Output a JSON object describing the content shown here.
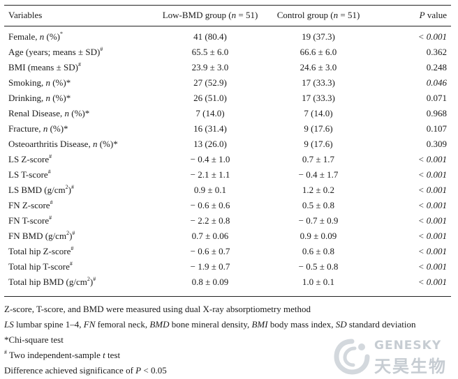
{
  "table": {
    "headers": {
      "variables": "Variables",
      "low_pre": "Low-BMD group (",
      "low_n": "n",
      "low_post": " = 51)",
      "ctrl_pre": "Control group (",
      "ctrl_n": "n",
      "ctrl_post": " = 51)",
      "p_italic": "P",
      "p_post": " value"
    },
    "rows": [
      {
        "label_main": "Female, ",
        "label_italic": "n",
        "label_after": " (%)",
        "label_sup": "*",
        "low": "41 (80.4)",
        "ctrl": "19 (37.3)",
        "p": "< 0.001",
        "p_italic": true
      },
      {
        "label_main": "Age (years; means ± SD)",
        "label_italic": "",
        "label_after": "",
        "label_sup": "#",
        "low": "65.5 ± 6.0",
        "ctrl": "66.6 ± 6.0",
        "p": "0.362",
        "p_italic": false
      },
      {
        "label_main": "BMI (means ± SD)",
        "label_italic": "",
        "label_after": "",
        "label_sup": "#",
        "low": "23.9 ± 3.0",
        "ctrl": "24.6 ± 3.0",
        "p": "0.248",
        "p_italic": false
      },
      {
        "label_main": "Smoking, ",
        "label_italic": "n",
        "label_after": " (%)*",
        "label_sup": "",
        "low": "27 (52.9)",
        "ctrl": "17 (33.3)",
        "p": "0.046",
        "p_italic": true
      },
      {
        "label_main": "Drinking, ",
        "label_italic": "n",
        "label_after": " (%)*",
        "label_sup": "",
        "low": "26 (51.0)",
        "ctrl": "17 (33.3)",
        "p": "0.071",
        "p_italic": false
      },
      {
        "label_main": "Renal Disease, ",
        "label_italic": "n",
        "label_after": " (%)*",
        "label_sup": "",
        "low": "7 (14.0)",
        "ctrl": "7 (14.0)",
        "p": "0.968",
        "p_italic": false
      },
      {
        "label_main": "Fracture, ",
        "label_italic": "n",
        "label_after": " (%)*",
        "label_sup": "",
        "low": "16 (31.4)",
        "ctrl": "9 (17.6)",
        "p": "0.107",
        "p_italic": false
      },
      {
        "label_main": "Osteoarthritis Disease, ",
        "label_italic": "n",
        "label_after": " (%)*",
        "label_sup": "",
        "low": "13 (26.0)",
        "ctrl": "9 (17.6)",
        "p": "0.309",
        "p_italic": false
      },
      {
        "label_main": "LS Z-score",
        "label_italic": "",
        "label_after": "",
        "label_sup": "#",
        "low": "− 0.4 ± 1.0",
        "ctrl": "0.7 ± 1.7",
        "p": "< 0.001",
        "p_italic": true
      },
      {
        "label_main": "LS T-score",
        "label_italic": "",
        "label_after": "",
        "label_sup": "#",
        "low": "− 2.1 ± 1.1",
        "ctrl": "− 0.4 ± 1.7",
        "p": "< 0.001",
        "p_italic": true
      },
      {
        "label_main": "LS BMD (g/cm",
        "label_italic": "",
        "label_after": ")",
        "label_sq": "2",
        "label_sup": "#",
        "low": "0.9 ± 0.1",
        "ctrl": "1.2 ± 0.2",
        "p": "< 0.001",
        "p_italic": true
      },
      {
        "label_main": "FN Z-score",
        "label_italic": "",
        "label_after": "",
        "label_sup": "#",
        "low": "− 0.6 ± 0.6",
        "ctrl": "0.5 ± 0.8",
        "p": "< 0.001",
        "p_italic": true
      },
      {
        "label_main": "FN T-score",
        "label_italic": "",
        "label_after": "",
        "label_sup": "#",
        "low": "− 2.2 ± 0.8",
        "ctrl": "− 0.7 ± 0.9",
        "p": "< 0.001",
        "p_italic": true
      },
      {
        "label_main": "FN BMD  (g/cm",
        "label_italic": "",
        "label_after": ")",
        "label_sq": "2",
        "label_sup": "#",
        "low": "0.7 ± 0.06",
        "ctrl": "0.9 ± 0.09",
        "p": "< 0.001",
        "p_italic": true
      },
      {
        "label_main": "Total hip Z-score",
        "label_italic": "",
        "label_after": "",
        "label_sup": "#",
        "low": "− 0.6 ± 0.7",
        "ctrl": "0.6 ± 0.8",
        "p": "< 0.001",
        "p_italic": true
      },
      {
        "label_main": "Total hip T-score",
        "label_italic": "",
        "label_after": "",
        "label_sup": "#",
        "low": "− 1.9 ± 0.7",
        "ctrl": "− 0.5 ± 0.8",
        "p": "< 0.001",
        "p_italic": true
      },
      {
        "label_main": "Total hip BMD (g/cm",
        "label_italic": "",
        "label_after": ")",
        "label_sq": "2",
        "label_sup": "#",
        "low": "0.8 ± 0.09",
        "ctrl": "1.0 ± 0.1",
        "p": "< 0.001",
        "p_italic": true
      }
    ]
  },
  "notes": {
    "line1": "Z-score, T-score, and BMD were measured using dual X-ray absorptiometry method",
    "line2": [
      {
        "t": "LS",
        "i": true
      },
      {
        "t": " lumbar spine 1–4, ",
        "i": false
      },
      {
        "t": "FN",
        "i": true
      },
      {
        "t": " femoral neck, ",
        "i": false
      },
      {
        "t": "BMD",
        "i": true
      },
      {
        "t": " bone mineral density, ",
        "i": false
      },
      {
        "t": "BMI",
        "i": true
      },
      {
        "t": " body mass index, ",
        "i": false
      },
      {
        "t": "SD",
        "i": true
      },
      {
        "t": " standard deviation",
        "i": false
      }
    ],
    "line3": "*Chi-square test",
    "line4_sup": "#",
    "line4_main": " Two independent-sample ",
    "line4_italic": "t",
    "line4_after": " test",
    "line5_main": "Difference achieved significance of ",
    "line5_italic": "P",
    "line5_after": " < 0.05"
  },
  "watermark": {
    "text_en": "GENESKY",
    "text_cn": "天昊生物",
    "color": "#c6ccd2"
  }
}
